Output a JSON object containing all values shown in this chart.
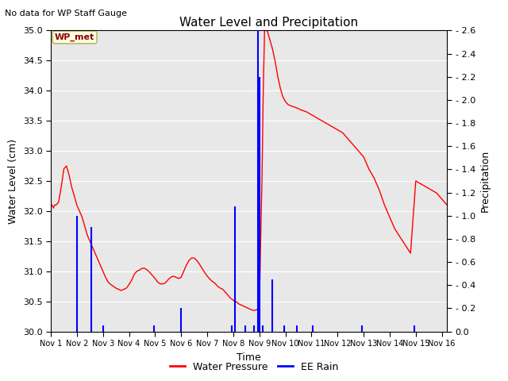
{
  "title": "Water Level and Precipitation",
  "top_left_text": "No data for WP Staff Gauge",
  "annotation_box": "WP_met",
  "xlabel": "Time",
  "ylabel_left": "Water Level (cm)",
  "ylabel_right": "Precipitation",
  "ylim_left": [
    30.0,
    35.0
  ],
  "ylim_right": [
    0.0,
    2.6
  ],
  "background_color": "#e8e8e8",
  "water_pressure_color": "red",
  "ee_rain_color": "blue",
  "water_pressure_x": [
    0.0,
    0.05,
    0.1,
    0.15,
    0.2,
    0.3,
    0.4,
    0.5,
    0.6,
    0.7,
    0.8,
    0.9,
    1.0,
    1.05,
    1.1,
    1.15,
    1.2,
    1.3,
    1.4,
    1.5,
    1.6,
    1.7,
    1.8,
    1.9,
    2.0,
    2.1,
    2.2,
    2.3,
    2.4,
    2.5,
    2.6,
    2.7,
    2.8,
    2.9,
    3.0,
    3.1,
    3.2,
    3.3,
    3.4,
    3.5,
    3.6,
    3.7,
    3.8,
    3.9,
    4.0,
    4.1,
    4.2,
    4.3,
    4.4,
    4.5,
    4.6,
    4.7,
    4.8,
    4.9,
    5.0,
    5.1,
    5.2,
    5.3,
    5.4,
    5.5,
    5.6,
    5.7,
    5.8,
    5.9,
    6.0,
    6.1,
    6.2,
    6.3,
    6.4,
    6.5,
    6.6,
    6.7,
    6.8,
    6.9,
    7.0,
    7.05,
    7.1,
    7.15,
    7.2,
    7.3,
    7.4,
    7.5,
    7.6,
    7.7,
    7.8,
    7.9,
    7.95,
    8.0,
    8.05,
    8.1,
    8.15,
    8.2,
    8.3,
    8.4,
    8.5,
    8.6,
    8.7,
    8.8,
    8.9,
    9.0,
    9.1,
    9.2,
    9.4,
    9.6,
    9.8,
    10.0,
    10.2,
    10.4,
    10.6,
    10.8,
    11.0,
    11.2,
    11.4,
    11.6,
    11.8,
    12.0,
    12.2,
    12.4,
    12.6,
    12.8,
    13.0,
    13.2,
    13.5,
    13.8,
    14.0,
    14.2,
    14.4,
    14.6,
    14.8,
    15.0,
    15.2
  ],
  "water_pressure_y": [
    32.1,
    32.1,
    32.05,
    32.1,
    32.1,
    32.15,
    32.4,
    32.7,
    32.75,
    32.6,
    32.4,
    32.25,
    32.1,
    32.05,
    32.0,
    31.95,
    31.9,
    31.75,
    31.6,
    31.5,
    31.4,
    31.3,
    31.2,
    31.1,
    31.0,
    30.9,
    30.82,
    30.78,
    30.75,
    30.72,
    30.7,
    30.68,
    30.7,
    30.72,
    30.78,
    30.85,
    30.95,
    31.0,
    31.02,
    31.05,
    31.05,
    31.02,
    30.98,
    30.93,
    30.88,
    30.82,
    30.79,
    30.79,
    30.81,
    30.86,
    30.9,
    30.92,
    30.9,
    30.88,
    30.9,
    31.0,
    31.1,
    31.18,
    31.22,
    31.22,
    31.18,
    31.12,
    31.05,
    30.98,
    30.92,
    30.87,
    30.83,
    30.8,
    30.75,
    30.72,
    30.7,
    30.65,
    30.6,
    30.55,
    30.52,
    30.5,
    30.5,
    30.48,
    30.46,
    30.44,
    30.42,
    30.4,
    30.38,
    30.36,
    30.35,
    30.36,
    30.38,
    30.42,
    31.5,
    32.5,
    34.0,
    35.0,
    35.0,
    34.85,
    34.7,
    34.5,
    34.25,
    34.05,
    33.9,
    33.82,
    33.77,
    33.75,
    33.72,
    33.68,
    33.65,
    33.6,
    33.55,
    33.5,
    33.45,
    33.4,
    33.35,
    33.3,
    33.2,
    33.1,
    33.0,
    32.9,
    32.7,
    32.55,
    32.35,
    32.1,
    31.9,
    31.7,
    31.5,
    31.3,
    32.5,
    32.45,
    32.4,
    32.35,
    32.3,
    32.2,
    32.1
  ],
  "rain_events": [
    {
      "x": 1.0,
      "height": 1.0
    },
    {
      "x": 1.55,
      "height": 0.9
    },
    {
      "x": 2.0,
      "height": 0.05
    },
    {
      "x": 3.95,
      "height": 0.05
    },
    {
      "x": 5.0,
      "height": 0.2
    },
    {
      "x": 6.95,
      "height": 0.05
    },
    {
      "x": 7.05,
      "height": 1.08
    },
    {
      "x": 7.45,
      "height": 0.05
    },
    {
      "x": 7.78,
      "height": 0.05
    },
    {
      "x": 7.95,
      "height": 2.6
    },
    {
      "x": 8.02,
      "height": 2.2
    },
    {
      "x": 8.12,
      "height": 0.05
    },
    {
      "x": 8.48,
      "height": 0.45
    },
    {
      "x": 8.95,
      "height": 0.05
    },
    {
      "x": 9.45,
      "height": 0.05
    },
    {
      "x": 10.05,
      "height": 0.05
    },
    {
      "x": 11.95,
      "height": 0.05
    },
    {
      "x": 13.95,
      "height": 0.05
    }
  ],
  "xtick_positions": [
    0,
    1,
    2,
    3,
    4,
    5,
    6,
    7,
    8,
    9,
    10,
    11,
    12,
    13,
    14,
    15
  ],
  "xtick_labels": [
    "Nov 1",
    "Nov 2",
    "Nov 3",
    "Nov 4",
    "Nov 5",
    "Nov 6",
    "Nov 7",
    "Nov 8",
    "Nov 9",
    "Nov 10",
    "Nov 11",
    "Nov 12",
    "Nov 13",
    "Nov 14",
    "Nov 15",
    "Nov 16"
  ],
  "yticks_left": [
    30.0,
    30.5,
    31.0,
    31.5,
    32.0,
    32.5,
    33.0,
    33.5,
    34.0,
    34.5,
    35.0
  ],
  "yticks_right": [
    0.0,
    0.2,
    0.4,
    0.6,
    0.8,
    1.0,
    1.2,
    1.4,
    1.6,
    1.8,
    2.0,
    2.2,
    2.4,
    2.6
  ]
}
